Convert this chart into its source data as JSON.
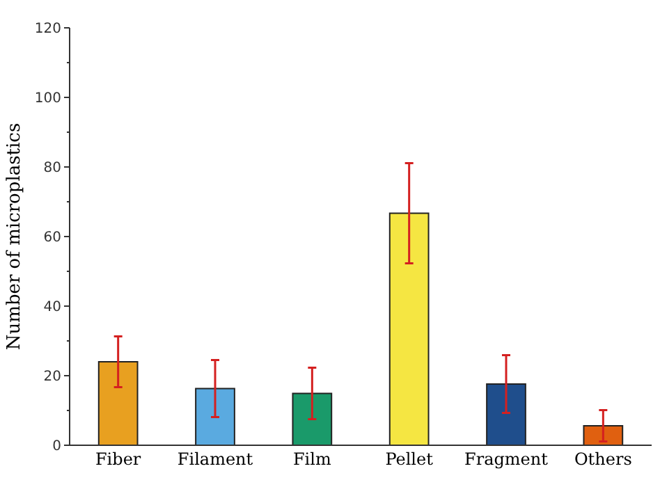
{
  "chart_data": {
    "type": "bar",
    "ylabel": "Number of microplastics",
    "categories": [
      "Fiber",
      "Filament",
      "Film",
      "Pellet",
      "Fragment",
      "Others"
    ],
    "values": [
      24,
      16.3,
      14.9,
      66.7,
      17.6,
      5.6
    ],
    "errors": [
      7.3,
      8.2,
      7.4,
      14.4,
      8.3,
      4.5
    ],
    "colors": [
      "#e8a020",
      "#5aaae0",
      "#1a9a6a",
      "#f5e642",
      "#1f4e8c",
      "#e06010"
    ],
    "ylim": [
      0,
      120
    ],
    "yticks": [
      0,
      {
        "value": 10,
        "label": null
      },
      20,
      {
        "value": 30,
        "label": null
      },
      40,
      {
        "value": 50,
        "label": null
      },
      60,
      {
        "value": 70,
        "label": null
      },
      80,
      {
        "value": 90,
        "label": null
      },
      100,
      {
        "value": 110,
        "label": null
      },
      120
    ],
    "grid": false
  }
}
